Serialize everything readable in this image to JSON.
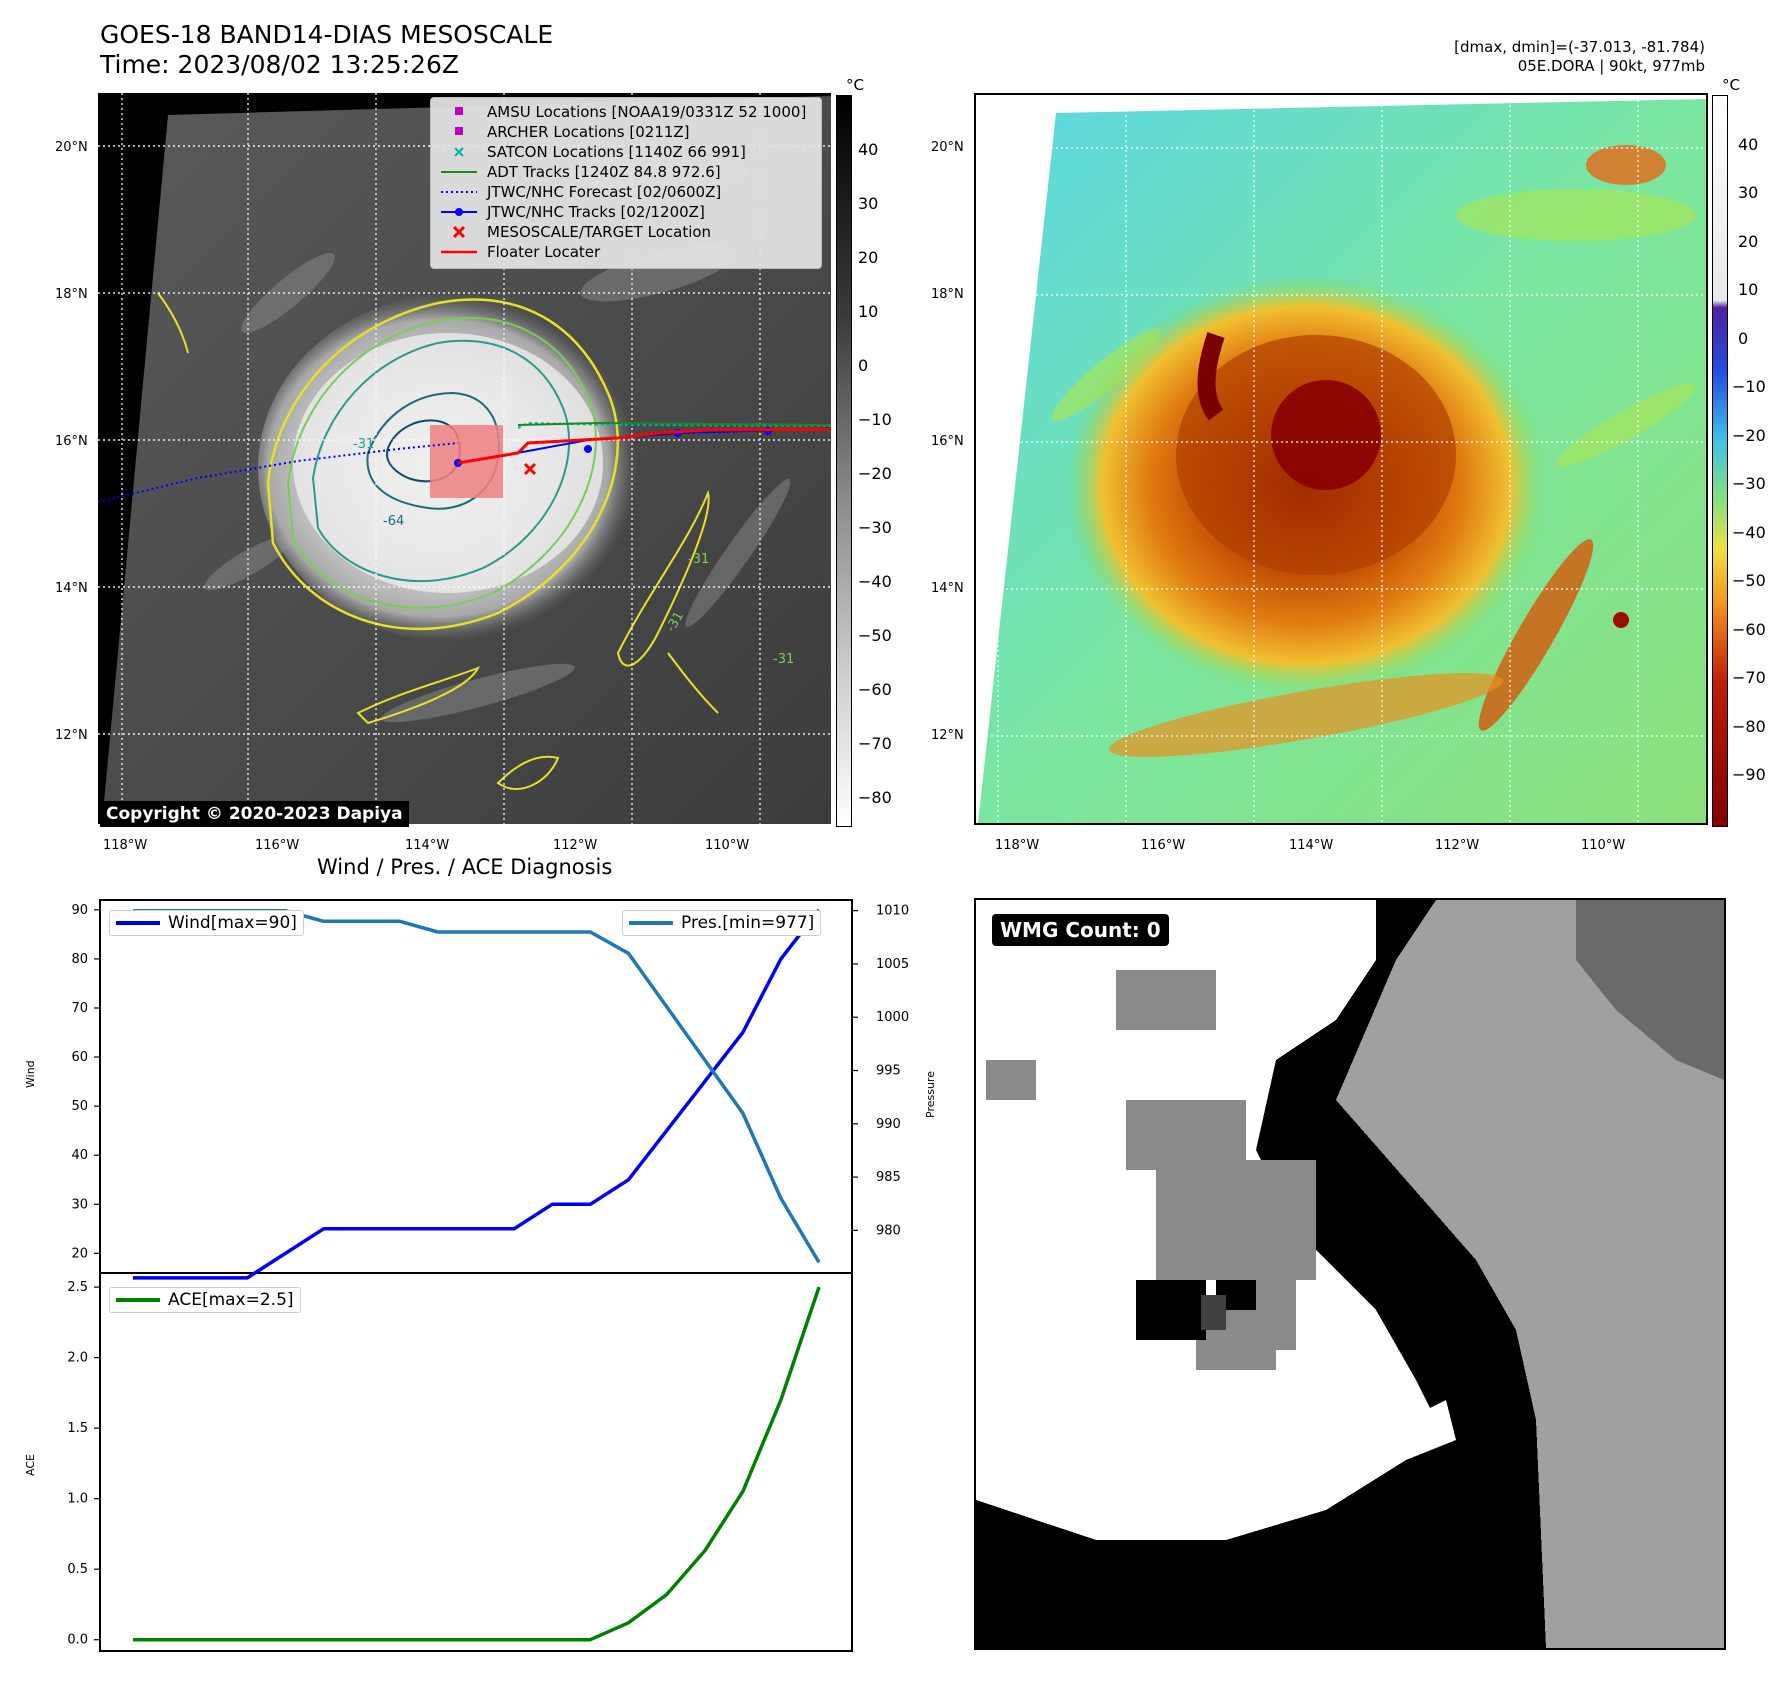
{
  "header": {
    "title_line1": "GOES-18 BAND14-DIAS MESOSCALE",
    "title_line2": "Time: 2023/08/02 13:25:26Z",
    "right_line1": "[dmax, dmin]=(-37.013, -81.784)",
    "right_line2": "05E.DORA | 90kt, 977mb"
  },
  "maps": {
    "lat_labels": [
      "20°N",
      "18°N",
      "16°N",
      "14°N",
      "12°N"
    ],
    "lon_labels": [
      "118°W",
      "116°W",
      "114°W",
      "112°W",
      "110°W"
    ],
    "colorbar_unit": "°C",
    "gray_colorbar_ticks": [
      "40",
      "30",
      "20",
      "10",
      "0",
      "−10",
      "−20",
      "−30",
      "−40",
      "−50",
      "−60",
      "−70",
      "−80"
    ],
    "color_colorbar_ticks": [
      "40",
      "30",
      "20",
      "10",
      "0",
      "−10",
      "−20",
      "−30",
      "−40",
      "−50",
      "−60",
      "−70",
      "−80",
      "−90"
    ],
    "copyright": "Copyright © 2020-2023 Dapiya",
    "contour_labels": [
      "-64",
      "-31",
      "-31",
      "-31",
      "-31"
    ],
    "legend": [
      {
        "label": "AMSU Locations [NOAA19/0331Z 52 1000]",
        "color": "#c000c0",
        "symbol": "square"
      },
      {
        "label": "ARCHER Locations [0211Z]",
        "color": "#c000c0",
        "symbol": "square"
      },
      {
        "label": "SATCON Locations [1140Z 66 991]",
        "color": "#00b0b0",
        "symbol": "x"
      },
      {
        "label": "ADT Tracks [1240Z 84.8 972.6]",
        "color": "#1a8a1a",
        "symbol": "line"
      },
      {
        "label": "JTWC/NHC Forecast [02/0600Z]",
        "color": "#0000ff",
        "symbol": "dotted"
      },
      {
        "label": "JTWC/NHC Tracks [02/1200Z]",
        "color": "#0000ff",
        "symbol": "line-dot"
      },
      {
        "label": "MESOSCALE/TARGET Location",
        "color": "#ff0000",
        "symbol": "x"
      },
      {
        "label": "Floater Locater",
        "color": "#ff0000",
        "symbol": "line"
      }
    ]
  },
  "diagnosis": {
    "title": "Wind / Pres. / ACE Diagnosis",
    "wind_ylabel": "Wind",
    "pres_ylabel": "Pressure",
    "ace_ylabel": "ACE",
    "wind_legend": "Wind[max=90]",
    "pres_legend": "Pres.[min=977]",
    "ace_legend": "ACE[max=2.5]",
    "wind_color": "#0000ee",
    "pres_color": "#1f77b4",
    "ace_color": "#008000"
  },
  "wmg": {
    "label": "WMG Count: 0"
  },
  "chart_data": [
    {
      "type": "line",
      "title": "Wind / Pres. / ACE Diagnosis",
      "ylabel": "Wind",
      "ylim": [
        16,
        92
      ],
      "yticks": [
        20,
        30,
        40,
        50,
        60,
        70,
        80,
        90
      ],
      "series": [
        {
          "name": "Wind[max=90]",
          "values": [
            15,
            15,
            15,
            15,
            20,
            25,
            25,
            25,
            25,
            25,
            25,
            30,
            30,
            35,
            45,
            55,
            65,
            80,
            90
          ]
        }
      ]
    },
    {
      "type": "line",
      "ylabel": "Pressure",
      "ylim": [
        976,
        1011
      ],
      "yticks": [
        980,
        985,
        990,
        995,
        1000,
        1005,
        1010
      ],
      "series": [
        {
          "name": "Pres.[min=977]",
          "values": [
            1010,
            1010,
            1010,
            1010,
            1010,
            1009,
            1009,
            1009,
            1008,
            1008,
            1008,
            1008,
            1008,
            1006,
            1001,
            996,
            991,
            983,
            977
          ]
        }
      ]
    },
    {
      "type": "line",
      "ylabel": "ACE",
      "ylim": [
        -0.08,
        2.6
      ],
      "yticks": [
        0.0,
        0.5,
        1.0,
        1.5,
        2.0,
        2.5
      ],
      "series": [
        {
          "name": "ACE[max=2.5]",
          "values": [
            0,
            0,
            0,
            0,
            0,
            0,
            0,
            0,
            0,
            0,
            0,
            0,
            0,
            0.12,
            0.32,
            0.63,
            1.05,
            1.7,
            2.5
          ]
        }
      ]
    }
  ]
}
